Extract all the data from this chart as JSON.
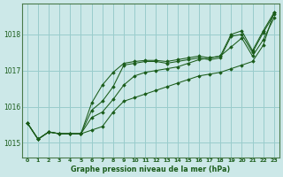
{
  "title": "Graphe pression niveau de la mer (hPa)",
  "background_color": "#cce8e8",
  "grid_color": "#99cccc",
  "line_color": "#1a5c1a",
  "marker_color": "#1a5c1a",
  "xlim": [
    -0.5,
    23.5
  ],
  "ylim": [
    1014.6,
    1018.85
  ],
  "yticks": [
    1015,
    1016,
    1017,
    1018
  ],
  "xticks": [
    0,
    1,
    2,
    3,
    4,
    5,
    6,
    7,
    8,
    9,
    10,
    11,
    12,
    13,
    14,
    15,
    16,
    17,
    18,
    19,
    20,
    21,
    22,
    23
  ],
  "series": [
    [
      1015.55,
      1015.1,
      1015.3,
      1015.25,
      1015.25,
      1015.25,
      1015.35,
      1015.45,
      1015.85,
      1016.15,
      1016.25,
      1016.35,
      1016.45,
      1016.55,
      1016.65,
      1016.75,
      1016.85,
      1016.9,
      1016.95,
      1017.05,
      1017.15,
      1017.25,
      1017.7,
      1018.6
    ],
    [
      1015.55,
      1015.1,
      1015.3,
      1015.25,
      1015.25,
      1015.25,
      1015.7,
      1015.85,
      1016.2,
      1016.6,
      1016.85,
      1016.95,
      1017.0,
      1017.05,
      1017.1,
      1017.2,
      1017.3,
      1017.35,
      1017.4,
      1017.65,
      1017.9,
      1017.4,
      1017.85,
      1018.45
    ],
    [
      1015.55,
      1015.1,
      1015.3,
      1015.25,
      1015.25,
      1015.25,
      1015.9,
      1016.15,
      1016.55,
      1017.15,
      1017.2,
      1017.25,
      1017.25,
      1017.2,
      1017.25,
      1017.3,
      1017.35,
      1017.3,
      1017.35,
      1017.95,
      1018.0,
      1017.5,
      1018.05,
      1018.55
    ],
    [
      1015.55,
      1015.1,
      1015.3,
      1015.25,
      1015.25,
      1015.25,
      1016.1,
      1016.6,
      1016.95,
      1017.2,
      1017.25,
      1017.28,
      1017.28,
      1017.25,
      1017.3,
      1017.35,
      1017.4,
      1017.35,
      1017.4,
      1018.0,
      1018.1,
      1017.55,
      1018.1,
      1018.6
    ]
  ]
}
